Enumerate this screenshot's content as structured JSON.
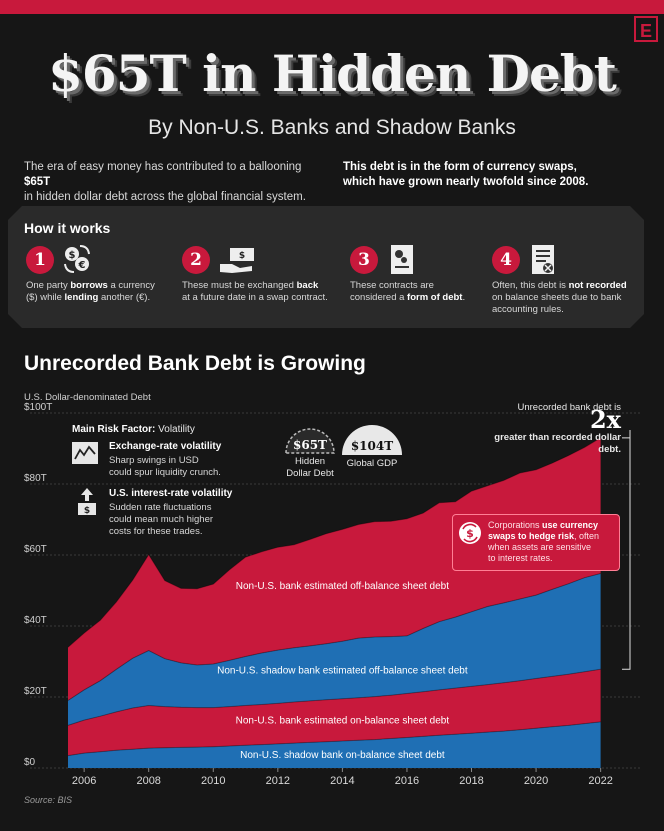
{
  "brand": {
    "logo": "E"
  },
  "header": {
    "title": "$65T in Hidden Debt",
    "subtitle": "By Non-U.S. Banks and Shadow Banks"
  },
  "intro": {
    "left_a": "The era of easy money has contributed to a ballooning ",
    "left_b": "$65T",
    "left_c": "in hidden dollar debt across the global financial system.",
    "right_a": "This debt is in the form of currency swaps,",
    "right_b": "which have grown nearly twofold since 2008."
  },
  "how": {
    "title": "How it works",
    "steps": [
      {
        "num": "1",
        "icon": "currency-exchange-icon",
        "line1_a": "One party ",
        "line1_b": "borrows",
        "line1_c": " a currency",
        "line2_a": "($) while ",
        "line2_b": "lending",
        "line2_c": " another (€)."
      },
      {
        "num": "2",
        "icon": "handing-money-icon",
        "line1_a": "These must be exchanged ",
        "line1_b": "back",
        "line2_a": "at a future date in a swap contract."
      },
      {
        "num": "3",
        "icon": "contract-document-icon",
        "line1_a": "These contracts are",
        "line2_a": "considered a ",
        "line2_b": "form of debt",
        "line2_c": "."
      },
      {
        "num": "4",
        "icon": "crossed-ledger-icon",
        "line1_a": "Often, this debt is ",
        "line1_b": "not recorded",
        "line2_a": "on balance sheets due to bank",
        "line3_a": "accounting rules."
      }
    ]
  },
  "chart_header": {
    "title": "Unrecorded Bank Debt is Growing",
    "ylabel": "U.S. Dollar-denominated Debt"
  },
  "risk": {
    "heading_a": "Main Risk Factor:",
    "heading_b": " Volatility",
    "item1_title": "Exchange-rate volatility",
    "item1_l1": "Sharp swings in USD",
    "item1_l2": "could spur liquidity crunch.",
    "item2_title": "U.S. interest-rate volatility",
    "item2_l1": "Sudden rate fluctuations",
    "item2_l2": "could mean much higher",
    "item2_l3": "costs for these trades."
  },
  "gauges": {
    "hidden_value": "$65T",
    "hidden_l1": "Hidden",
    "hidden_l2": "Dollar Debt",
    "gdp_value": "$104T",
    "gdp_label": "Global GDP"
  },
  "twox": {
    "pre": "Unrecorded bank debt is ",
    "big": "2x",
    "post": "greater than recorded dollar debt."
  },
  "hedge": {
    "a": "Corporations ",
    "b": "use currency",
    "c": "swaps to hedge risk",
    "d": ", often",
    "e": "when assets are sensitive",
    "f": "to interest rates."
  },
  "source": "Source: BIS",
  "chart_data": {
    "type": "area",
    "stacked": true,
    "xlim": [
      2005.5,
      2022.6
    ],
    "ylim": [
      0,
      100
    ],
    "y_ticks": [
      "$0",
      "$20T",
      "$40T",
      "$60T",
      "$80T",
      "$100T"
    ],
    "y_tick_values": [
      0,
      20,
      40,
      60,
      80,
      100
    ],
    "x_ticks": [
      "2006",
      "2008",
      "2010",
      "2012",
      "2014",
      "2016",
      "2018",
      "2020",
      "2022"
    ],
    "x_tick_values": [
      2006,
      2008,
      2010,
      2012,
      2014,
      2016,
      2018,
      2020,
      2022
    ],
    "x": [
      2005.5,
      2006,
      2006.5,
      2007,
      2007.5,
      2008,
      2008.5,
      2009,
      2009.5,
      2010,
      2010.5,
      2011,
      2011.5,
      2012,
      2012.5,
      2013,
      2013.5,
      2014,
      2014.5,
      2015,
      2015.5,
      2016,
      2016.5,
      2017,
      2017.5,
      2018,
      2018.5,
      2019,
      2019.5,
      2020,
      2020.5,
      2021,
      2021.5,
      2022
    ],
    "series": [
      {
        "name": "Non-U.S. shadow bank on-balance sheet debt",
        "color": "#1f6fb4",
        "values": [
          3.5,
          4.2,
          4.6,
          5.0,
          5.3,
          5.6,
          5.7,
          5.8,
          5.9,
          6.0,
          6.2,
          6.4,
          6.6,
          6.8,
          7.0,
          7.2,
          7.4,
          7.6,
          7.8,
          8.0,
          8.3,
          8.6,
          8.9,
          9.2,
          9.5,
          9.8,
          10.1,
          10.4,
          10.8,
          11.2,
          11.6,
          12.0,
          12.5,
          13.0
        ]
      },
      {
        "name": "Non-U.S. bank estimated on-balance sheet debt",
        "color": "#c8193c",
        "values": [
          8.5,
          9.3,
          10.0,
          10.8,
          11.6,
          12.0,
          11.6,
          11.3,
          11.1,
          11.0,
          11.1,
          11.2,
          11.3,
          11.4,
          11.6,
          11.7,
          11.8,
          11.9,
          12.0,
          12.1,
          12.2,
          12.4,
          12.6,
          12.8,
          13.0,
          13.2,
          13.4,
          13.6,
          13.8,
          14.0,
          14.2,
          14.4,
          14.6,
          14.8
        ]
      },
      {
        "name": "Non-U.S. shadow bank estimated off-balance sheet debt",
        "color": "#1f6fb4",
        "values": [
          7.0,
          8.5,
          10.0,
          12.0,
          14.0,
          15.5,
          13.5,
          12.5,
          12.0,
          12.3,
          13.0,
          13.8,
          14.5,
          15.0,
          15.3,
          15.5,
          15.8,
          16.2,
          16.8,
          16.8,
          16.5,
          16.2,
          17.8,
          19.2,
          20.0,
          21.0,
          22.0,
          22.5,
          23.0,
          23.5,
          24.5,
          25.5,
          26.5,
          27.0
        ]
      },
      {
        "name": "Non-U.S. bank estimated off-balance sheet debt",
        "color": "#c8193c",
        "values": [
          15.0,
          16.0,
          17.0,
          19.0,
          22.0,
          27.0,
          22.0,
          21.0,
          21.5,
          22.5,
          25.5,
          28.0,
          28.5,
          29.0,
          29.0,
          30.0,
          31.0,
          31.5,
          32.0,
          32.5,
          32.5,
          33.0,
          32.5,
          33.5,
          32.5,
          34.0,
          34.0,
          34.5,
          35.5,
          35.3,
          35.6,
          36.1,
          36.7,
          38.2
        ]
      }
    ]
  }
}
